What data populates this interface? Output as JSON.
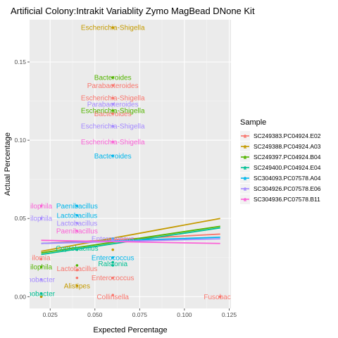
{
  "chart_data": {
    "type": "scatter",
    "title": "Artificial Colony:Intrakit Variablity Zymo MagBead DNone Kit",
    "xlabel": "Expected Percentage",
    "ylabel": "Actual Percentage",
    "xlim": [
      0.0135,
      0.126
    ],
    "ylim": [
      -0.0075,
      0.177
    ],
    "x_ticks": [
      0.025,
      0.05,
      0.075,
      0.1,
      0.125
    ],
    "x_tick_labels": [
      "0.025",
      "0.050",
      "0.075",
      "0.100",
      "0.125"
    ],
    "y_ticks": [
      0.0,
      0.05,
      0.1,
      0.15
    ],
    "y_tick_labels": [
      "0.00",
      "0.05",
      "0.10",
      "0.15"
    ],
    "grid": true,
    "legend": {
      "title": "Sample",
      "placement": "right"
    },
    "series": [
      {
        "name": "SC249383.PC04924.E02",
        "color": "#F8766D",
        "fit": [
          [
            0.02,
            0.034
          ],
          [
            0.12,
            0.04
          ]
        ],
        "points": [
          [
            0.02,
            0.024
          ],
          [
            0.04,
            0.017
          ],
          [
            0.04,
            0.012
          ],
          [
            0.06,
            0.117
          ],
          [
            0.06,
            0.135
          ],
          [
            0.06,
            0.127
          ],
          [
            0.06,
            0.012
          ],
          [
            0.06,
            0.001
          ],
          [
            0.12,
            0.0
          ]
        ],
        "labels": [
          {
            "text": "ilomia",
            "x": 0.02,
            "y": 0.025
          },
          {
            "text": "Lactobacillus",
            "x": 0.04,
            "y": 0.018
          },
          {
            "text": "Enterococcus",
            "x": 0.06,
            "y": 0.012
          },
          {
            "text": "Parabacteroides",
            "x": 0.06,
            "y": 0.135
          },
          {
            "text": "Escherichia-Shigella",
            "x": 0.06,
            "y": 0.127
          },
          {
            "text": "Bacteroides",
            "x": 0.06,
            "y": 0.117
          },
          {
            "text": "Collinsella",
            "x": 0.06,
            "y": 0.0
          },
          {
            "text": "Fusobacte",
            "x": 0.12,
            "y": 0.0
          }
        ]
      },
      {
        "name": "SC249388.PC04924.A03",
        "color": "#C49A00",
        "fit": [
          [
            0.02,
            0.029
          ],
          [
            0.12,
            0.05
          ]
        ],
        "points": [
          [
            0.02,
            0.0
          ],
          [
            0.04,
            0.007
          ],
          [
            0.06,
            0.172
          ],
          [
            0.06,
            0.03
          ]
        ],
        "labels": [
          {
            "text": "Escherichia-Shigella",
            "x": 0.06,
            "y": 0.172
          },
          {
            "text": "Alistipes",
            "x": 0.04,
            "y": 0.007
          }
        ]
      },
      {
        "name": "SC249397.PC04924.B04",
        "color": "#53B400",
        "fit": [
          [
            0.02,
            0.028
          ],
          [
            0.12,
            0.045
          ]
        ],
        "points": [
          [
            0.02,
            0.019
          ],
          [
            0.04,
            0.02
          ],
          [
            0.06,
            0.14
          ],
          [
            0.06,
            0.119
          ]
        ],
        "labels": [
          {
            "text": "Bacteroides",
            "x": 0.06,
            "y": 0.14
          },
          {
            "text": "Escherichia-Shigella",
            "x": 0.06,
            "y": 0.119
          },
          {
            "text": "ilophila",
            "x": 0.02,
            "y": 0.019
          }
        ]
      },
      {
        "name": "SC249400.PC04924.E04",
        "color": "#00C094",
        "fit": [
          [
            0.02,
            0.027
          ],
          [
            0.12,
            0.044
          ]
        ],
        "points": [
          [
            0.02,
            0.002
          ],
          [
            0.04,
            0.03
          ],
          [
            0.06,
            0.022
          ],
          [
            0.06,
            0.02
          ]
        ],
        "labels": [
          {
            "text": "Coprobacillus",
            "x": 0.04,
            "y": 0.031
          },
          {
            "text": "Ralstonia",
            "x": 0.06,
            "y": 0.021
          },
          {
            "text": "nobacter",
            "x": 0.02,
            "y": 0.002
          }
        ]
      },
      {
        "name": "SC304093.PC07578.A04",
        "color": "#00B6EB",
        "fit": [
          [
            0.02,
            0.034
          ],
          [
            0.12,
            0.038
          ]
        ],
        "points": [
          [
            0.04,
            0.058
          ],
          [
            0.04,
            0.052
          ],
          [
            0.06,
            0.09
          ],
          [
            0.06,
            0.037
          ],
          [
            0.06,
            0.025
          ]
        ],
        "labels": [
          {
            "text": "Paenibacillus",
            "x": 0.04,
            "y": 0.058
          },
          {
            "text": "Lactobacillus",
            "x": 0.04,
            "y": 0.052
          },
          {
            "text": "Bacteroides",
            "x": 0.06,
            "y": 0.09
          },
          {
            "text": "Enterococcus",
            "x": 0.06,
            "y": 0.025
          }
        ]
      },
      {
        "name": "SC304926.PC07578.E06",
        "color": "#A58AFF",
        "fit": [
          [
            0.02,
            0.034
          ],
          [
            0.12,
            0.037
          ]
        ],
        "points": [
          [
            0.02,
            0.05
          ],
          [
            0.04,
            0.047
          ],
          [
            0.06,
            0.123
          ],
          [
            0.06,
            0.109
          ],
          [
            0.06,
            0.036
          ],
          [
            0.02,
            0.011
          ]
        ],
        "labels": [
          {
            "text": "Parabacteroides",
            "x": 0.06,
            "y": 0.123
          },
          {
            "text": "Escherichia-Shigella",
            "x": 0.06,
            "y": 0.109
          },
          {
            "text": "Lactobacillus",
            "x": 0.04,
            "y": 0.047
          },
          {
            "text": "ilophila",
            "x": 0.02,
            "y": 0.05
          },
          {
            "text": "Enterococcus",
            "x": 0.06,
            "y": 0.037
          },
          {
            "text": "nobacter",
            "x": 0.02,
            "y": 0.011
          }
        ]
      },
      {
        "name": "SC304936.PC07578.B11",
        "color": "#FB61D7",
        "fit": [
          [
            0.02,
            0.036
          ],
          [
            0.12,
            0.034
          ]
        ],
        "points": [
          [
            0.02,
            0.058
          ],
          [
            0.04,
            0.042
          ],
          [
            0.06,
            0.099
          ]
        ],
        "labels": [
          {
            "text": "ilophila",
            "x": 0.02,
            "y": 0.058
          },
          {
            "text": "Paenibacillus",
            "x": 0.04,
            "y": 0.042
          },
          {
            "text": "Escherichia-Shigella",
            "x": 0.06,
            "y": 0.099
          }
        ]
      }
    ]
  }
}
